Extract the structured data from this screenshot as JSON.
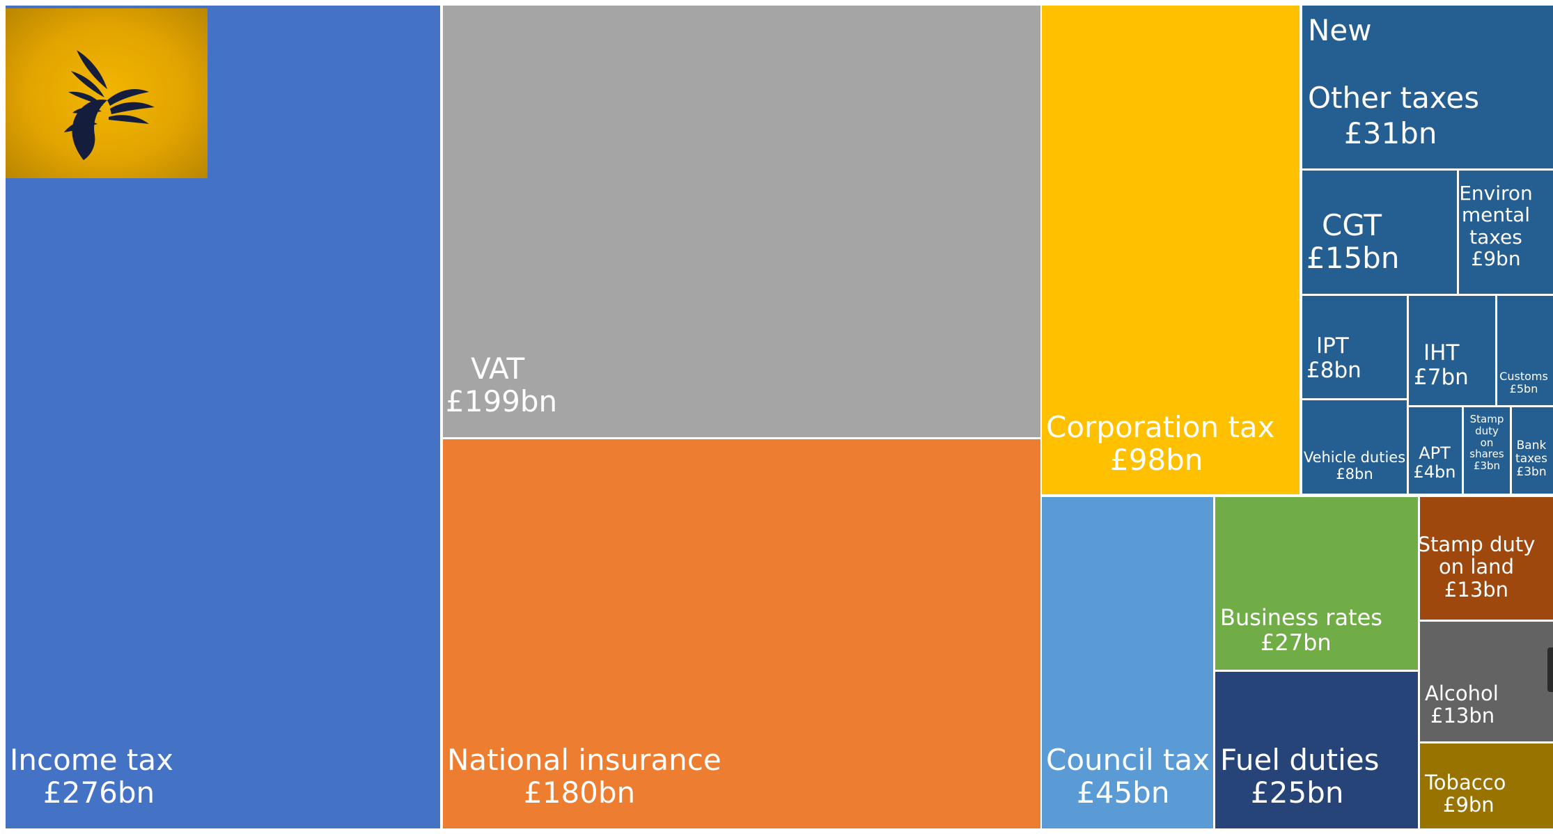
{
  "chart_data": {
    "type": "treemap",
    "unit": "£bn",
    "items": [
      {
        "id": "income-tax",
        "name": "Income tax",
        "value": 276,
        "label": "£276bn",
        "color": "#4472C4"
      },
      {
        "id": "vat",
        "name": "VAT",
        "value": 199,
        "label": "£199bn",
        "color": "#A5A5A5"
      },
      {
        "id": "national-insurance",
        "name": "National insurance",
        "value": 180,
        "label": "£180bn",
        "color": "#ED7D31"
      },
      {
        "id": "corporation-tax",
        "name": "Corporation tax",
        "value": 98,
        "label": "£98bn",
        "color": "#FFC000"
      },
      {
        "id": "council-tax",
        "name": "Council tax",
        "value": 45,
        "label": "£45bn",
        "color": "#5B9BD5"
      },
      {
        "id": "new-other-taxes",
        "name": "New\nOther taxes",
        "value": 31,
        "label": "£31bn",
        "color": "#255E91"
      },
      {
        "id": "business-rates",
        "name": "Business rates",
        "value": 27,
        "label": "£27bn",
        "color": "#70AD47"
      },
      {
        "id": "fuel-duties",
        "name": "Fuel duties",
        "value": 25,
        "label": "£25bn",
        "color": "#264478"
      },
      {
        "id": "cgt",
        "name": "CGT",
        "value": 15,
        "label": "£15bn",
        "color": "#255E91"
      },
      {
        "id": "stamp-duty-land",
        "name": "Stamp duty\non land",
        "value": 13,
        "label": "£13bn",
        "color": "#9E480E"
      },
      {
        "id": "alcohol",
        "name": "Alcohol",
        "value": 13,
        "label": "£13bn",
        "color": "#636363"
      },
      {
        "id": "environmental-taxes",
        "name": "Environ\nmental\ntaxes",
        "value": 9,
        "label": "£9bn",
        "color": "#255E91"
      },
      {
        "id": "tobacco",
        "name": "Tobacco",
        "value": 9,
        "label": "£9bn",
        "color": "#997300"
      },
      {
        "id": "ipt",
        "name": "IPT",
        "value": 8,
        "label": "£8bn",
        "color": "#255E91"
      },
      {
        "id": "vehicle-duties",
        "name": "Vehicle duties",
        "value": 8,
        "label": "£8bn",
        "color": "#255E91"
      },
      {
        "id": "iht",
        "name": "IHT",
        "value": 7,
        "label": "£7bn",
        "color": "#255E91"
      },
      {
        "id": "customs",
        "name": "Customs",
        "value": 5,
        "label": "£5bn",
        "color": "#255E91"
      },
      {
        "id": "apt",
        "name": "APT",
        "value": 4,
        "label": "£4bn",
        "color": "#255E91"
      },
      {
        "id": "stamp-duty-shares",
        "name": "Stamp\nduty\non\nshares",
        "value": 3,
        "label": "£3bn",
        "color": "#255E91"
      },
      {
        "id": "bank-taxes",
        "name": "Bank\ntaxes",
        "value": 3,
        "label": "£3bn",
        "color": "#255E91"
      }
    ]
  }
}
